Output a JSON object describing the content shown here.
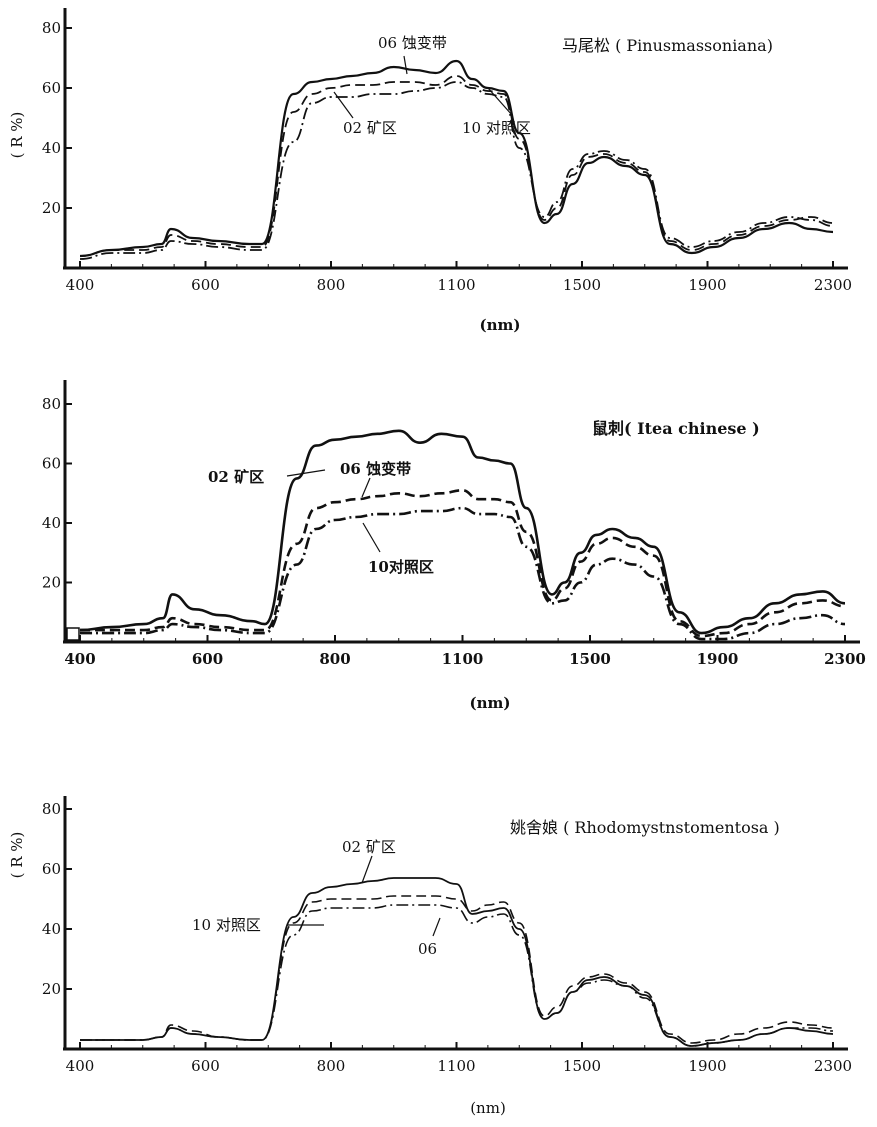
{
  "chart_data": [
    {
      "type": "line",
      "title": "马尾松 ( Pinusmassoniana)",
      "xlabel": "(nm)",
      "ylabel": "( R %)",
      "x_ticks": [
        400,
        600,
        800,
        1100,
        1500,
        1900,
        2300
      ],
      "y_ticks": [
        20,
        40,
        60,
        80
      ],
      "ylim": [
        0,
        80
      ],
      "series": [
        {
          "name": "06 蚀变带",
          "style": "solid",
          "y": [
            4,
            6,
            7,
            8,
            13,
            10,
            9,
            8,
            8,
            58,
            62,
            63,
            64,
            65,
            67,
            66,
            65,
            69,
            63,
            60,
            59,
            45,
            15,
            18,
            28,
            35,
            37,
            34,
            31,
            8,
            5,
            7,
            10,
            13,
            15,
            13,
            12
          ]
        },
        {
          "name": "02 矿区",
          "style": "dash",
          "y": [
            4,
            6,
            6,
            7,
            11,
            9,
            8,
            7,
            7,
            52,
            58,
            60,
            61,
            61,
            62,
            62,
            61,
            64,
            61,
            59,
            58,
            43,
            16,
            20,
            31,
            37,
            38,
            35,
            32,
            9,
            6,
            8,
            11,
            14,
            16,
            17,
            15
          ]
        },
        {
          "name": "10 对照区",
          "style": "dashdot",
          "y": [
            3,
            5,
            5,
            6,
            9,
            8,
            7,
            6,
            6,
            42,
            55,
            57,
            57,
            58,
            58,
            59,
            60,
            62,
            60,
            58,
            57,
            40,
            17,
            22,
            33,
            38,
            39,
            36,
            33,
            10,
            7,
            9,
            12,
            15,
            17,
            16,
            14
          ]
        }
      ],
      "annotations": [
        "06 蚀变带",
        "02 矿区",
        "10 对照区"
      ]
    },
    {
      "type": "line",
      "title": "鼠刺( Itea chinese )",
      "xlabel": "(nm)",
      "ylabel": "",
      "x_ticks": [
        400,
        600,
        800,
        1100,
        1500,
        1900,
        2300
      ],
      "y_ticks": [
        20,
        40,
        60,
        80
      ],
      "ylim": [
        0,
        80
      ],
      "series": [
        {
          "name": "02 矿区",
          "style": "solid",
          "y": [
            4,
            5,
            6,
            8,
            16,
            11,
            9,
            7,
            6,
            55,
            66,
            68,
            69,
            70,
            71,
            67,
            70,
            69,
            62,
            61,
            60,
            45,
            16,
            20,
            30,
            36,
            38,
            35,
            32,
            10,
            3,
            5,
            8,
            13,
            16,
            17,
            13
          ]
        },
        {
          "name": "06 蚀变带",
          "style": "dash",
          "y": [
            4,
            4,
            4,
            5,
            8,
            6,
            5,
            4,
            4,
            33,
            45,
            47,
            48,
            49,
            50,
            49,
            50,
            51,
            48,
            48,
            47,
            37,
            14,
            18,
            27,
            33,
            35,
            32,
            29,
            7,
            2,
            3,
            6,
            10,
            13,
            14,
            12
          ]
        },
        {
          "name": "10 对照区",
          "style": "dashdot",
          "y": [
            3,
            3,
            3,
            4,
            6,
            5,
            4,
            3,
            3,
            26,
            38,
            41,
            42,
            43,
            43,
            44,
            44,
            45,
            43,
            43,
            42,
            32,
            13,
            14,
            20,
            26,
            28,
            26,
            22,
            6,
            1,
            1,
            3,
            6,
            8,
            9,
            6
          ]
        }
      ],
      "annotations": [
        "02 矿区",
        "06 蚀变带",
        "10对照区"
      ]
    },
    {
      "type": "line",
      "title": "姚舍娘 ( Rhodomystnstomentosa )",
      "xlabel": "(nm)",
      "ylabel": "( R %)",
      "x_ticks": [
        400,
        600,
        800,
        1100,
        1500,
        1900,
        2300
      ],
      "y_ticks": [
        20,
        40,
        60,
        80
      ],
      "ylim": [
        0,
        80
      ],
      "series": [
        {
          "name": "02 矿区",
          "style": "solid",
          "y": [
            3,
            3,
            3,
            4,
            7,
            5,
            4,
            3,
            3,
            44,
            52,
            54,
            55,
            56,
            57,
            57,
            57,
            55,
            45,
            46,
            47,
            40,
            10,
            12,
            19,
            23,
            24,
            21,
            18,
            4,
            1,
            2,
            3,
            5,
            7,
            6,
            5
          ]
        },
        {
          "name": "10 对照区",
          "style": "dash",
          "y": [
            3,
            3,
            3,
            4,
            8,
            6,
            4,
            3,
            3,
            42,
            49,
            50,
            50,
            50,
            51,
            51,
            51,
            50,
            46,
            48,
            49,
            42,
            11,
            14,
            21,
            24,
            25,
            22,
            19,
            5,
            2,
            3,
            5,
            7,
            9,
            8,
            7
          ]
        },
        {
          "name": "06",
          "style": "dashdot",
          "y": [
            3,
            3,
            3,
            4,
            7,
            5,
            4,
            3,
            3,
            38,
            46,
            47,
            47,
            47,
            48,
            48,
            48,
            47,
            42,
            44,
            45,
            38,
            10,
            12,
            19,
            22,
            23,
            21,
            17,
            4,
            1,
            2,
            3,
            5,
            7,
            7,
            6
          ]
        }
      ],
      "annotations": [
        "02 矿区",
        "10 对照区",
        "06"
      ]
    }
  ]
}
